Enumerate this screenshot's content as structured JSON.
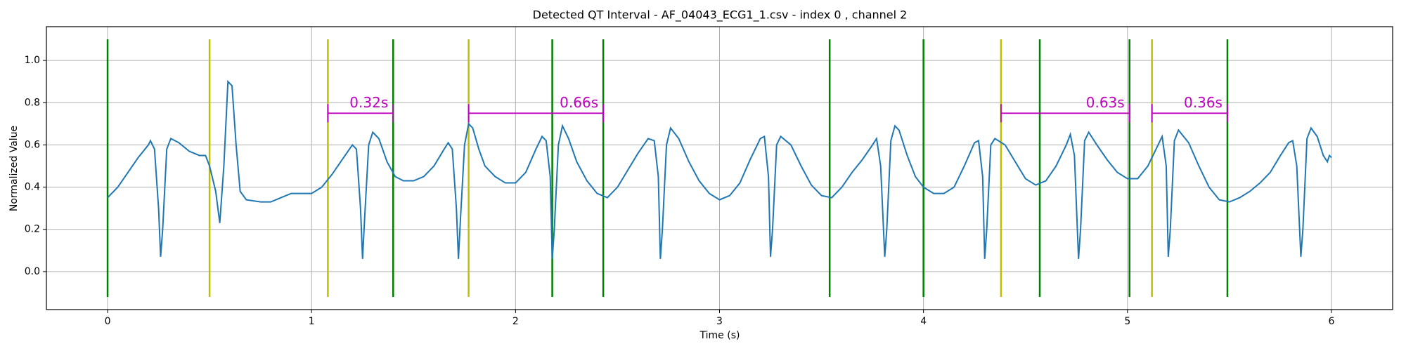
{
  "chart_data": {
    "type": "line",
    "title": "Detected QT Interval - AF_04043_ECG1_1.csv - index 0 , channel 2",
    "xlabel": "Time (s)",
    "ylabel": "Normalized Value",
    "xlim": [
      -0.3,
      6.3
    ],
    "ylim": [
      -0.18,
      1.16
    ],
    "xticks": [
      0,
      1,
      2,
      3,
      4,
      5,
      6
    ],
    "yticks": [
      {
        "value": 0,
        "label": "0.0"
      },
      0.2,
      0.4,
      0.6,
      0.8,
      {
        "value": 1,
        "label": "1.0"
      }
    ],
    "grid": true,
    "series": [
      {
        "color": "#1f77b4",
        "x": [
          0,
          0.05,
          0.1,
          0.15,
          0.2,
          0.21,
          0.23,
          0.25,
          0.26,
          0.27,
          0.29,
          0.31,
          0.35,
          0.4,
          0.45,
          0.48,
          0.5,
          0.53,
          0.55,
          0.57,
          0.59,
          0.61,
          0.63,
          0.65,
          0.68,
          0.75,
          0.8,
          0.85,
          0.9,
          0.95,
          1,
          1.05,
          1.1,
          1.15,
          1.2,
          1.22,
          1.24,
          1.25,
          1.26,
          1.28,
          1.3,
          1.33,
          1.37,
          1.41,
          1.45,
          1.5,
          1.55,
          1.6,
          1.65,
          1.67,
          1.69,
          1.71,
          1.72,
          1.73,
          1.75,
          1.77,
          1.79,
          1.82,
          1.85,
          1.9,
          1.95,
          2,
          2.05,
          2.1,
          2.13,
          2.15,
          2.17,
          2.18,
          2.19,
          2.21,
          2.23,
          2.26,
          2.3,
          2.35,
          2.4,
          2.45,
          2.5,
          2.55,
          2.6,
          2.65,
          2.68,
          2.7,
          2.71,
          2.72,
          2.74,
          2.76,
          2.8,
          2.85,
          2.9,
          2.95,
          3,
          3.05,
          3.1,
          3.15,
          3.2,
          3.22,
          3.24,
          3.25,
          3.26,
          3.28,
          3.3,
          3.35,
          3.4,
          3.45,
          3.5,
          3.55,
          3.6,
          3.65,
          3.7,
          3.75,
          3.77,
          3.79,
          3.81,
          3.82,
          3.84,
          3.86,
          3.88,
          3.92,
          3.96,
          4,
          4.05,
          4.1,
          4.15,
          4.2,
          4.25,
          4.27,
          4.29,
          4.3,
          4.31,
          4.33,
          4.35,
          4.4,
          4.45,
          4.5,
          4.55,
          4.6,
          4.65,
          4.7,
          4.72,
          4.74,
          4.76,
          4.77,
          4.79,
          4.81,
          4.85,
          4.9,
          4.95,
          5,
          5.05,
          5.1,
          5.15,
          5.17,
          5.19,
          5.2,
          5.21,
          5.23,
          5.25,
          5.3,
          5.35,
          5.4,
          5.45,
          5.5,
          5.55,
          5.6,
          5.65,
          5.7,
          5.75,
          5.79,
          5.81,
          5.83,
          5.85,
          5.86,
          5.88,
          5.9,
          5.93,
          5.96,
          5.98,
          5.99,
          6
        ],
        "values": [
          0.35,
          0.4,
          0.47,
          0.54,
          0.6,
          0.62,
          0.58,
          0.3,
          0.07,
          0.2,
          0.58,
          0.63,
          0.61,
          0.57,
          0.55,
          0.55,
          0.5,
          0.38,
          0.23,
          0.5,
          0.9,
          0.88,
          0.6,
          0.38,
          0.34,
          0.33,
          0.33,
          0.35,
          0.37,
          0.37,
          0.37,
          0.4,
          0.46,
          0.53,
          0.6,
          0.58,
          0.3,
          0.06,
          0.25,
          0.6,
          0.66,
          0.63,
          0.52,
          0.45,
          0.43,
          0.43,
          0.45,
          0.5,
          0.58,
          0.61,
          0.58,
          0.3,
          0.06,
          0.25,
          0.6,
          0.7,
          0.68,
          0.58,
          0.5,
          0.45,
          0.42,
          0.42,
          0.47,
          0.58,
          0.64,
          0.62,
          0.45,
          0.06,
          0.2,
          0.6,
          0.69,
          0.63,
          0.52,
          0.43,
          0.37,
          0.35,
          0.4,
          0.48,
          0.56,
          0.63,
          0.62,
          0.45,
          0.06,
          0.2,
          0.6,
          0.68,
          0.63,
          0.52,
          0.43,
          0.37,
          0.34,
          0.36,
          0.42,
          0.53,
          0.63,
          0.64,
          0.45,
          0.07,
          0.2,
          0.6,
          0.64,
          0.6,
          0.5,
          0.41,
          0.36,
          0.35,
          0.4,
          0.47,
          0.53,
          0.6,
          0.63,
          0.5,
          0.07,
          0.2,
          0.62,
          0.69,
          0.67,
          0.55,
          0.45,
          0.4,
          0.37,
          0.37,
          0.4,
          0.5,
          0.61,
          0.62,
          0.45,
          0.06,
          0.2,
          0.6,
          0.63,
          0.6,
          0.52,
          0.44,
          0.41,
          0.43,
          0.5,
          0.6,
          0.65,
          0.55,
          0.06,
          0.2,
          0.62,
          0.66,
          0.6,
          0.53,
          0.47,
          0.44,
          0.44,
          0.5,
          0.6,
          0.64,
          0.5,
          0.07,
          0.2,
          0.62,
          0.67,
          0.61,
          0.5,
          0.4,
          0.34,
          0.33,
          0.35,
          0.38,
          0.42,
          0.47,
          0.55,
          0.61,
          0.62,
          0.5,
          0.07,
          0.2,
          0.63,
          0.68,
          0.64,
          0.55,
          0.52,
          0.55,
          0.54
        ]
      }
    ],
    "vline_range": [
      -0.12,
      1.1
    ],
    "vlines": [
      {
        "color": "#008000",
        "x": [
          0,
          1.4,
          2.18,
          2.43,
          3.54,
          4.0,
          4.57,
          5.01,
          5.49
        ]
      },
      {
        "color": "#bfbf00",
        "x": [
          0.5,
          1.08,
          1.77,
          4.38,
          5.12
        ]
      }
    ],
    "annotation_color": "#bf00bf",
    "intervals": [
      {
        "x0": 1.08,
        "x1": 1.4,
        "y": 0.75,
        "label": "0.32s"
      },
      {
        "x0": 1.77,
        "x1": 2.43,
        "y": 0.75,
        "label": "0.66s"
      },
      {
        "x0": 4.38,
        "x1": 5.01,
        "y": 0.75,
        "label": "0.63s"
      },
      {
        "x0": 5.12,
        "x1": 5.49,
        "y": 0.75,
        "label": "0.36s"
      }
    ]
  }
}
